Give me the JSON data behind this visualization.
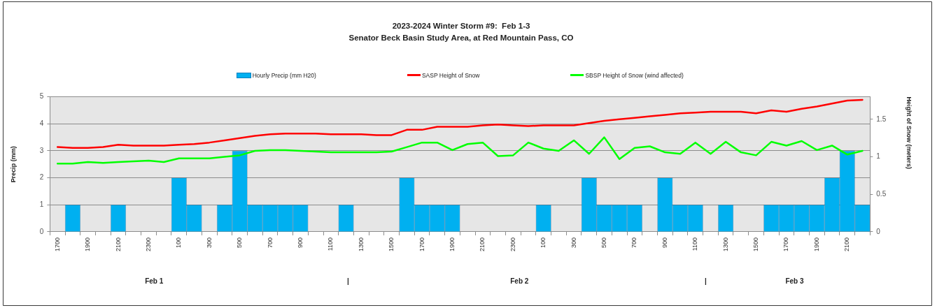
{
  "chart_data": {
    "type": "bar",
    "title": "2023-2024 Winter Storm #9:  Feb 1-3",
    "subtitle": "Senator Beck Basin Study Area, at Red Mountain Pass, CO",
    "ylabel": "Precip (mm)",
    "y2label": "Height of Snow (meters)",
    "annotations": [
      "Feb 1",
      "|",
      "Feb 2",
      "|",
      "Feb 3"
    ],
    "categories": [
      "1700",
      null,
      "1900",
      null,
      "2100",
      null,
      "2300",
      null,
      "100",
      null,
      "300",
      null,
      "500",
      null,
      "700",
      null,
      "900",
      null,
      "1100",
      null,
      "1300",
      null,
      "1500",
      null,
      "1700",
      null,
      "1900",
      null,
      "2100",
      null,
      "2300",
      null,
      "100",
      null,
      "300",
      null,
      "500",
      null,
      "700",
      null,
      "900",
      null,
      "1100",
      null,
      "1300",
      null,
      "1500",
      null,
      "1700",
      null,
      "1900",
      null,
      "2100",
      null
    ],
    "series": [
      {
        "name": "Hourly Precip (mm H20)",
        "color": "#00b0f0",
        "values": [
          0,
          1,
          0,
          0,
          1,
          0,
          0,
          0,
          2,
          1,
          0,
          1,
          3,
          1,
          1,
          1,
          1,
          0,
          0,
          1,
          0,
          0,
          0,
          2,
          1,
          1,
          1,
          0,
          0,
          0,
          0,
          0,
          1,
          0,
          0,
          2,
          1,
          1,
          1,
          0,
          2,
          1,
          1,
          0,
          1,
          0,
          0,
          1,
          1,
          1,
          1,
          2,
          3,
          1
        ]
      },
      {
        "name": "SASP Height of Snow",
        "type": "line",
        "axis": "y2",
        "color": "#ff0000",
        "values": [
          1.13,
          1.12,
          1.12,
          1.13,
          1.16,
          1.15,
          1.15,
          1.15,
          1.16,
          1.17,
          1.19,
          1.22,
          1.25,
          1.28,
          1.3,
          1.31,
          1.31,
          1.31,
          1.3,
          1.3,
          1.3,
          1.29,
          1.29,
          1.36,
          1.36,
          1.4,
          1.4,
          1.4,
          1.42,
          1.43,
          1.42,
          1.41,
          1.42,
          1.42,
          1.42,
          1.45,
          1.48,
          1.5,
          1.52,
          1.54,
          1.56,
          1.58,
          1.59,
          1.6,
          1.6,
          1.6,
          1.58,
          1.62,
          1.6,
          1.64,
          1.67,
          1.71,
          1.75,
          1.76
        ]
      },
      {
        "name": "SBSP Height of Snow (wind affected)",
        "type": "line",
        "axis": "y2",
        "color": "#00ff00",
        "values": [
          0.91,
          0.91,
          0.93,
          0.92,
          0.93,
          0.94,
          0.95,
          0.93,
          0.98,
          0.98,
          0.98,
          1,
          1.02,
          1.08,
          1.09,
          1.09,
          1.08,
          1.07,
          1.06,
          1.06,
          1.06,
          1.06,
          1.07,
          1.13,
          1.19,
          1.19,
          1.09,
          1.17,
          1.19,
          1.01,
          1.02,
          1.19,
          1.11,
          1.08,
          1.22,
          1.04,
          1.26,
          0.97,
          1.12,
          1.14,
          1.06,
          1.04,
          1.19,
          1.04,
          1.2,
          1.06,
          1.02,
          1.2,
          1.15,
          1.21,
          1.09,
          1.15,
          1.03,
          1.08
        ]
      }
    ],
    "ylim": [
      0,
      5
    ],
    "yticks": [
      0,
      1,
      2,
      3,
      4,
      5
    ],
    "y2lim": [
      0,
      1.8
    ],
    "y2ticks": [
      0,
      0.5,
      1,
      1.5
    ],
    "grid": "y",
    "legend": "top"
  }
}
